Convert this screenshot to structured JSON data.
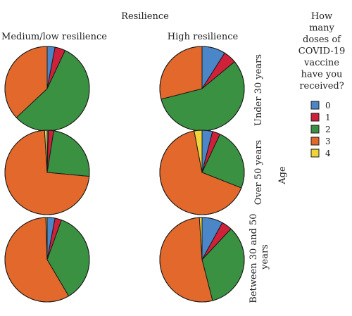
{
  "chart_data": {
    "type": "pie",
    "title": "Resilience",
    "column_labels": [
      "Medium/low resilience",
      "High resilience"
    ],
    "row_labels": [
      "Under 30 years",
      "Over 50 years",
      "Between 30 and 50 years"
    ],
    "row_axis_label": "Age",
    "legend": {
      "title_lines": [
        "How",
        "many",
        "doses of",
        "COVID-19",
        "vaccine",
        "have you",
        "received?"
      ],
      "items": [
        {
          "label": "0",
          "color": "#4a86c8"
        },
        {
          "label": "1",
          "color": "#d0213b"
        },
        {
          "label": "2",
          "color": "#3a9142"
        },
        {
          "label": "3",
          "color": "#e2692b"
        },
        {
          "label": "4",
          "color": "#f0d43a"
        }
      ]
    },
    "grid": false,
    "pies": [
      {
        "row": "Under 30 years",
        "column": "Medium/low resilience",
        "values": [
          3,
          4,
          56,
          37,
          0
        ]
      },
      {
        "row": "Under 30 years",
        "column": "High resilience",
        "values": [
          9,
          5,
          57,
          29,
          0
        ]
      },
      {
        "row": "Over 50 years",
        "column": "Medium/low resilience",
        "values": [
          0.5,
          2,
          24,
          72.5,
          1
        ]
      },
      {
        "row": "Over 50 years",
        "column": "High resilience",
        "values": [
          4,
          3,
          24,
          66,
          3
        ]
      },
      {
        "row": "Between 30 and 50 years",
        "column": "Medium/low resilience",
        "values": [
          3,
          2.5,
          36,
          58,
          0.5
        ]
      },
      {
        "row": "Between 30 and 50 years",
        "column": "High resilience",
        "values": [
          8,
          4,
          34,
          53,
          1
        ]
      }
    ]
  }
}
